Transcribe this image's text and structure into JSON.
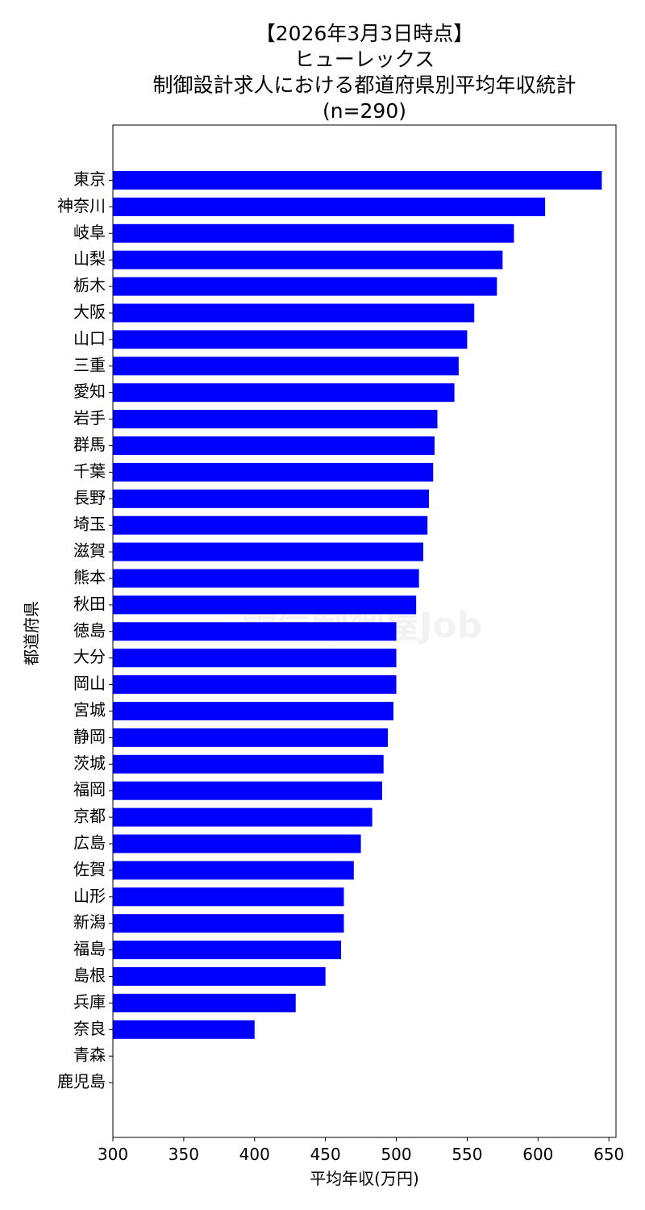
{
  "chart_data": {
    "type": "bar",
    "orientation": "horizontal",
    "title": [
      "【2026年3月3日時点】",
      "ヒューレックス",
      "制御設計求人における都道府県別平均年収統計",
      "(n=290)"
    ],
    "xlabel": "平均年収(万円)",
    "ylabel": "都道府県",
    "xlim": [
      300,
      655
    ],
    "xticks": [
      300,
      350,
      400,
      450,
      500,
      550,
      600,
      650
    ],
    "categories": [
      "東京",
      "神奈川",
      "岐阜",
      "山梨",
      "栃木",
      "大阪",
      "山口",
      "三重",
      "愛知",
      "岩手",
      "群馬",
      "千葉",
      "長野",
      "埼玉",
      "滋賀",
      "熊本",
      "秋田",
      "徳島",
      "大分",
      "岡山",
      "宮城",
      "静岡",
      "茨城",
      "福岡",
      "京都",
      "広島",
      "佐賀",
      "山形",
      "新潟",
      "福島",
      "島根",
      "兵庫",
      "奈良",
      "青森",
      "鹿児島"
    ],
    "values": [
      645,
      605,
      583,
      575,
      571,
      555,
      550,
      544,
      541,
      529,
      527,
      526,
      523,
      522,
      519,
      516,
      514,
      500,
      500,
      500,
      498,
      494,
      491,
      490,
      483,
      475,
      470,
      463,
      463,
      461,
      450,
      429,
      400,
      null,
      null
    ],
    "bar_color": "#0000ff",
    "grid": false,
    "watermark": "電気制御屋Job"
  }
}
